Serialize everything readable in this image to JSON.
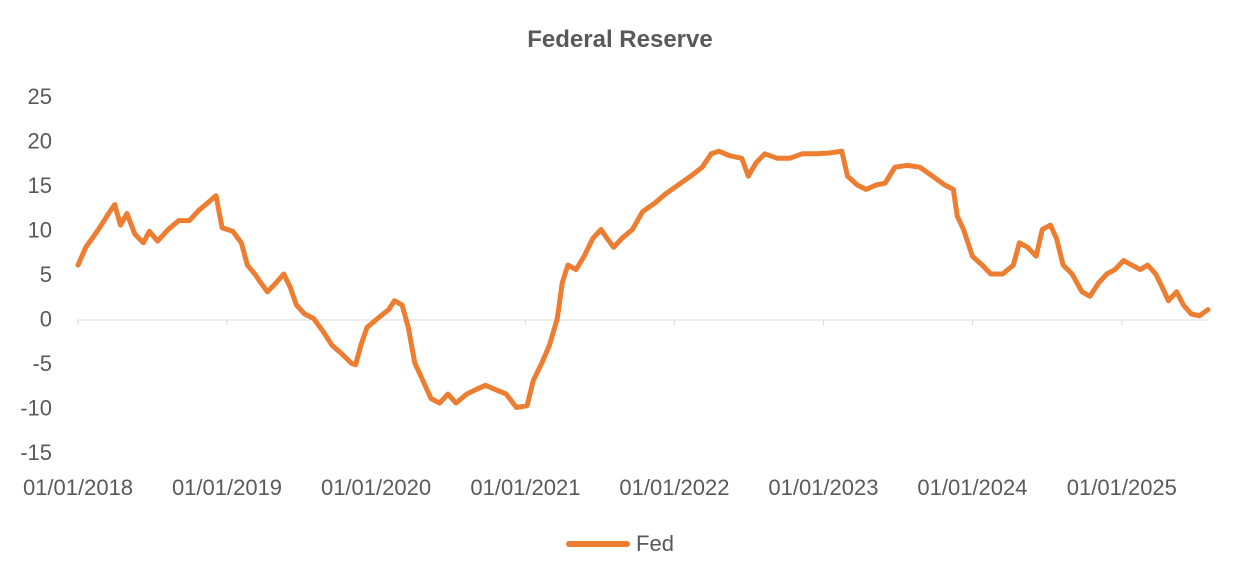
{
  "chart_data": {
    "type": "line",
    "title": "Federal Reserve",
    "xlabel": "",
    "ylabel": "",
    "x_tick_labels": [
      "01/01/2018",
      "01/01/2019",
      "01/01/2020",
      "01/01/2021",
      "01/01/2022",
      "01/01/2023",
      "01/01/2024",
      "01/01/2025"
    ],
    "y_ticks": [
      25,
      20,
      15,
      10,
      5,
      0,
      -5,
      -10,
      -15
    ],
    "ylim": [
      -15,
      25
    ],
    "xlim": [
      "2018-01-01",
      "2025-07-31"
    ],
    "grid": false,
    "legend_position": "bottom",
    "series": [
      {
        "name": "Fed",
        "color": "#ED7D31",
        "points": [
          [
            "2018-01-01",
            6.0
          ],
          [
            "2018-01-20",
            8.0
          ],
          [
            "2018-02-20",
            10.0
          ],
          [
            "2018-03-20",
            12.0
          ],
          [
            "2018-04-01",
            12.8
          ],
          [
            "2018-04-15",
            10.5
          ],
          [
            "2018-05-01",
            11.8
          ],
          [
            "2018-05-20",
            9.5
          ],
          [
            "2018-06-10",
            8.5
          ],
          [
            "2018-06-25",
            9.8
          ],
          [
            "2018-07-15",
            8.7
          ],
          [
            "2018-08-10",
            10.0
          ],
          [
            "2018-09-05",
            11.0
          ],
          [
            "2018-10-01",
            11.0
          ],
          [
            "2018-10-25",
            12.2
          ],
          [
            "2018-11-15",
            13.0
          ],
          [
            "2018-12-05",
            13.8
          ],
          [
            "2018-12-20",
            10.2
          ],
          [
            "2019-01-15",
            9.8
          ],
          [
            "2019-02-05",
            8.5
          ],
          [
            "2019-02-20",
            6.0
          ],
          [
            "2019-03-10",
            5.0
          ],
          [
            "2019-03-25",
            4.0
          ],
          [
            "2019-04-10",
            3.0
          ],
          [
            "2019-05-01",
            4.0
          ],
          [
            "2019-05-20",
            5.0
          ],
          [
            "2019-06-05",
            3.5
          ],
          [
            "2019-06-20",
            1.5
          ],
          [
            "2019-07-10",
            0.5
          ],
          [
            "2019-08-01",
            0.0
          ],
          [
            "2019-08-25",
            -1.5
          ],
          [
            "2019-09-15",
            -3.0
          ],
          [
            "2019-10-10",
            -4.0
          ],
          [
            "2019-11-01",
            -5.0
          ],
          [
            "2019-11-12",
            -5.2
          ],
          [
            "2019-11-25",
            -3.0
          ],
          [
            "2019-12-10",
            -1.0
          ],
          [
            "2020-01-05",
            0.0
          ],
          [
            "2020-02-01",
            1.0
          ],
          [
            "2020-02-15",
            2.0
          ],
          [
            "2020-03-05",
            1.5
          ],
          [
            "2020-03-20",
            -1.0
          ],
          [
            "2020-04-05",
            -5.0
          ],
          [
            "2020-04-25",
            -7.0
          ],
          [
            "2020-05-15",
            -9.0
          ],
          [
            "2020-06-05",
            -9.5
          ],
          [
            "2020-06-25",
            -8.5
          ],
          [
            "2020-07-15",
            -9.5
          ],
          [
            "2020-08-10",
            -8.5
          ],
          [
            "2020-09-01",
            -8.0
          ],
          [
            "2020-09-25",
            -7.5
          ],
          [
            "2020-10-20",
            -8.0
          ],
          [
            "2020-11-15",
            -8.5
          ],
          [
            "2020-12-10",
            -10.0
          ],
          [
            "2021-01-05",
            -9.8
          ],
          [
            "2021-01-20",
            -7.0
          ],
          [
            "2021-02-10",
            -5.0
          ],
          [
            "2021-03-01",
            -3.0
          ],
          [
            "2021-03-20",
            0.0
          ],
          [
            "2021-04-01",
            4.0
          ],
          [
            "2021-04-15",
            6.0
          ],
          [
            "2021-05-05",
            5.5
          ],
          [
            "2021-05-25",
            7.0
          ],
          [
            "2021-06-15",
            9.0
          ],
          [
            "2021-07-05",
            10.0
          ],
          [
            "2021-07-20",
            9.0
          ],
          [
            "2021-08-05",
            8.0
          ],
          [
            "2021-08-25",
            9.0
          ],
          [
            "2021-09-20",
            10.0
          ],
          [
            "2021-10-15",
            12.0
          ],
          [
            "2021-11-15",
            13.0
          ],
          [
            "2021-12-10",
            14.0
          ],
          [
            "2022-01-10",
            15.0
          ],
          [
            "2022-02-10",
            16.0
          ],
          [
            "2022-03-10",
            17.0
          ],
          [
            "2022-04-01",
            18.5
          ],
          [
            "2022-04-20",
            18.8
          ],
          [
            "2022-05-15",
            18.3
          ],
          [
            "2022-06-15",
            18.0
          ],
          [
            "2022-07-01",
            16.0
          ],
          [
            "2022-07-20",
            17.5
          ],
          [
            "2022-08-10",
            18.5
          ],
          [
            "2022-09-10",
            18.0
          ],
          [
            "2022-10-10",
            18.0
          ],
          [
            "2022-11-10",
            18.5
          ],
          [
            "2022-12-15",
            18.5
          ],
          [
            "2023-01-15",
            18.6
          ],
          [
            "2023-02-15",
            18.8
          ],
          [
            "2023-03-01",
            16.0
          ],
          [
            "2023-03-25",
            15.0
          ],
          [
            "2023-04-15",
            14.5
          ],
          [
            "2023-05-10",
            15.0
          ],
          [
            "2023-06-01",
            15.2
          ],
          [
            "2023-06-25",
            17.0
          ],
          [
            "2023-07-25",
            17.2
          ],
          [
            "2023-08-25",
            17.0
          ],
          [
            "2023-09-25",
            16.0
          ],
          [
            "2023-10-25",
            15.0
          ],
          [
            "2023-11-15",
            14.5
          ],
          [
            "2023-11-25",
            11.5
          ],
          [
            "2023-12-10",
            10.0
          ],
          [
            "2024-01-01",
            7.0
          ],
          [
            "2024-01-25",
            6.0
          ],
          [
            "2024-02-15",
            5.0
          ],
          [
            "2024-03-15",
            5.0
          ],
          [
            "2024-04-10",
            6.0
          ],
          [
            "2024-04-25",
            8.5
          ],
          [
            "2024-05-15",
            8.0
          ],
          [
            "2024-06-05",
            7.0
          ],
          [
            "2024-06-20",
            10.0
          ],
          [
            "2024-07-10",
            10.5
          ],
          [
            "2024-07-25",
            9.0
          ],
          [
            "2024-08-10",
            6.0
          ],
          [
            "2024-09-01",
            5.0
          ],
          [
            "2024-09-25",
            3.0
          ],
          [
            "2024-10-15",
            2.5
          ],
          [
            "2024-11-05",
            4.0
          ],
          [
            "2024-11-25",
            5.0
          ],
          [
            "2024-12-15",
            5.5
          ],
          [
            "2025-01-05",
            6.5
          ],
          [
            "2025-01-25",
            6.0
          ],
          [
            "2025-02-15",
            5.5
          ],
          [
            "2025-03-05",
            6.0
          ],
          [
            "2025-03-25",
            5.0
          ],
          [
            "2025-04-10",
            3.5
          ],
          [
            "2025-04-25",
            2.0
          ],
          [
            "2025-05-15",
            3.0
          ],
          [
            "2025-06-01",
            1.5
          ],
          [
            "2025-06-20",
            0.5
          ],
          [
            "2025-07-10",
            0.3
          ],
          [
            "2025-07-31",
            1.0
          ]
        ]
      }
    ]
  }
}
